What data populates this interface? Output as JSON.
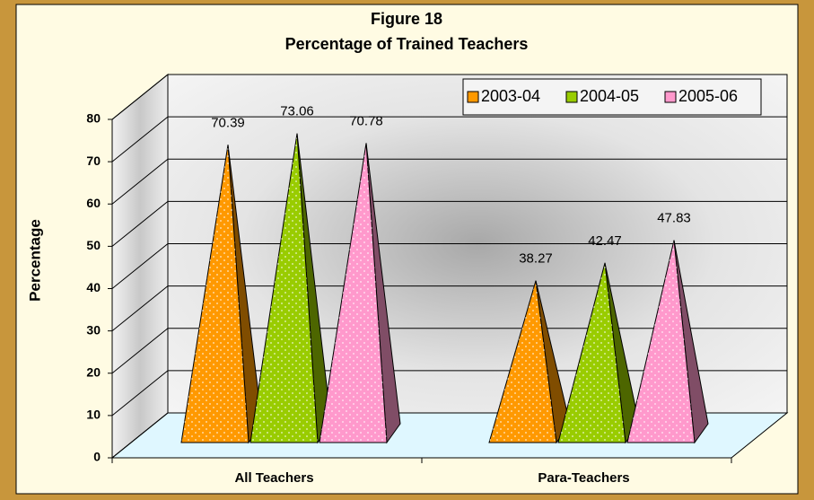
{
  "chart_data": {
    "type": "pyramid",
    "title": "Figure 18",
    "subtitle": "Percentage of Trained Teachers",
    "y_label": "Percentage",
    "categories": [
      "All Teachers",
      "Para-Teachers"
    ],
    "series": [
      {
        "name": "2003-04",
        "color": "#ff9900",
        "values": [
          70.39,
          38.27
        ]
      },
      {
        "name": "2004-05",
        "color": "#99cc00",
        "values": [
          73.06,
          42.47
        ]
      },
      {
        "name": "2005-06",
        "color": "#ff99cc",
        "values": [
          70.78,
          47.83
        ]
      }
    ],
    "ylim": [
      0,
      80
    ],
    "yticks": [
      0,
      10,
      20,
      30,
      40,
      50,
      60,
      70,
      80
    ],
    "grid": true
  }
}
